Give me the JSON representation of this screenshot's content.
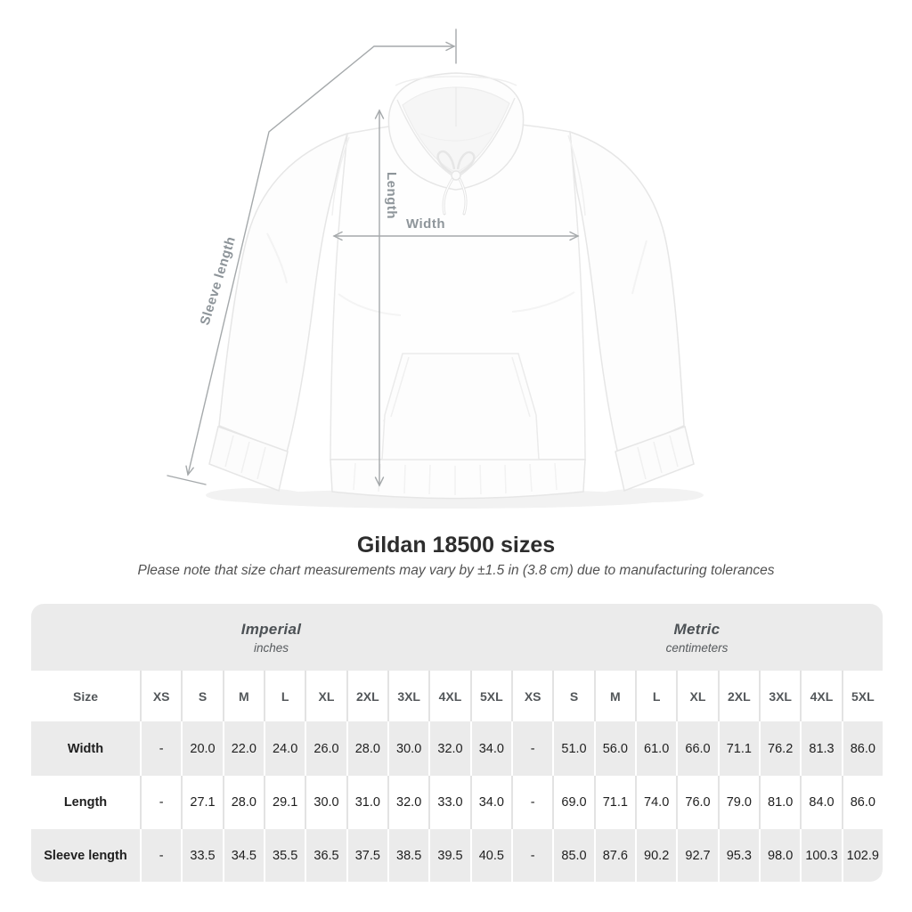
{
  "diagram": {
    "sleeve_length_label": "Sleeve length",
    "length_label": "Length",
    "width_label": "Width"
  },
  "heading": {
    "title": "Gildan 18500 sizes",
    "subtitle": "Please note that size chart measurements may vary by ±1.5 in (3.8 cm) due to manufacturing tolerances"
  },
  "chart_data": {
    "type": "table",
    "title": "Gildan 18500 sizes",
    "groups": [
      {
        "label": "Imperial",
        "unit": "inches",
        "span": 10
      },
      {
        "label": "Metric",
        "unit": "centimeters",
        "span": 9
      }
    ],
    "corner_header": "Size",
    "columns": [
      "XS",
      "S",
      "M",
      "L",
      "XL",
      "2XL",
      "3XL",
      "4XL",
      "5XL",
      "XS",
      "S",
      "M",
      "L",
      "XL",
      "2XL",
      "3XL",
      "4XL",
      "5XL"
    ],
    "rows": [
      {
        "label": "Width",
        "values": [
          "-",
          "20.0",
          "22.0",
          "24.0",
          "26.0",
          "28.0",
          "30.0",
          "32.0",
          "34.0",
          "-",
          "51.0",
          "56.0",
          "61.0",
          "66.0",
          "71.1",
          "76.2",
          "81.3",
          "86.0"
        ]
      },
      {
        "label": "Length",
        "values": [
          "-",
          "27.1",
          "28.0",
          "29.1",
          "30.0",
          "31.0",
          "32.0",
          "33.0",
          "34.0",
          "-",
          "69.0",
          "71.1",
          "74.0",
          "76.0",
          "79.0",
          "81.0",
          "84.0",
          "86.0"
        ]
      },
      {
        "label": "Sleeve length",
        "values": [
          "-",
          "33.5",
          "34.5",
          "35.5",
          "36.5",
          "37.5",
          "38.5",
          "39.5",
          "40.5",
          "-",
          "85.0",
          "87.6",
          "90.2",
          "92.7",
          "95.3",
          "98.0",
          "100.3",
          "102.9"
        ]
      }
    ]
  },
  "colors": {
    "table_band": "#ebebeb",
    "row_alt": "#ebebeb",
    "measurement_line": "#a5a9ab",
    "measurement_label": "#8e959a",
    "title_text": "#2d2d2d",
    "header_text": "#53575a",
    "value_text": "#1f1f1f"
  }
}
